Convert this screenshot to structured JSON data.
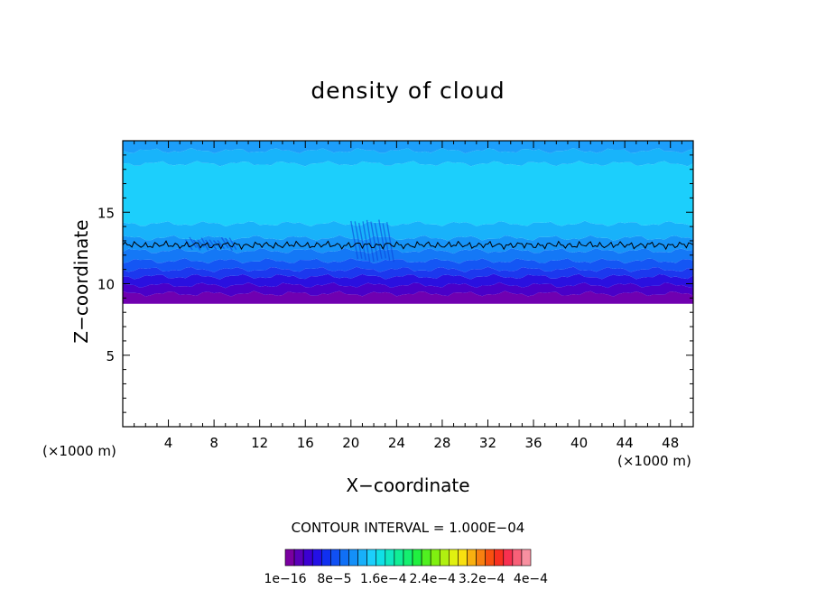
{
  "chart_data": {
    "type": "heatmap",
    "title": "density of cloud",
    "xlabel": "X−coordinate",
    "ylabel": "Z−coordinate",
    "xunit_left": "(×1000 m)",
    "xunit_right": "(×1000 m)",
    "xlim": [
      0,
      50
    ],
    "ylim": [
      0,
      20
    ],
    "xticks": [
      "4",
      "8",
      "12",
      "16",
      "20",
      "24",
      "28",
      "32",
      "36",
      "40",
      "44",
      "48"
    ],
    "xtick_values": [
      4,
      8,
      12,
      16,
      20,
      24,
      28,
      32,
      36,
      40,
      44,
      48
    ],
    "yticks": [
      "5",
      "10",
      "15"
    ],
    "ytick_values": [
      5,
      10,
      15
    ],
    "contour_interval_text": "CONTOUR INTERVAL = 1.000E−04",
    "colorbar": {
      "labels": [
        "1e−16",
        "8e−5",
        "1.6e−4",
        "2.4e−4",
        "3.2e−4",
        "4e−4"
      ],
      "colors": [
        "#7a00a0",
        "#5a00b8",
        "#3c00d2",
        "#2410e6",
        "#1030f0",
        "#1050f4",
        "#1070f6",
        "#1490f8",
        "#18b0fa",
        "#1ccffc",
        "#10e0e6",
        "#10e8c0",
        "#10ee96",
        "#14f070",
        "#20f040",
        "#50f020",
        "#80f010",
        "#b0f010",
        "#e0f010",
        "#f8e010",
        "#f8b010",
        "#f88010",
        "#f85010",
        "#f83020",
        "#f83050",
        "#f86078",
        "#f890a0"
      ],
      "label_positions": [
        0,
        4,
        8,
        12,
        16,
        20
      ]
    },
    "field": {
      "cloud_base_z": 8.6,
      "cloud_top_z": 20,
      "contour_line_z": 12.7,
      "bands": [
        {
          "z0": 8.6,
          "z1": 9.3,
          "color": "#7000b0"
        },
        {
          "z0": 9.3,
          "z1": 9.9,
          "color": "#4a00c8"
        },
        {
          "z0": 9.9,
          "z1": 10.5,
          "color": "#2a10e0"
        },
        {
          "z0": 10.5,
          "z1": 11.0,
          "color": "#1c38ee"
        },
        {
          "z0": 11.0,
          "z1": 11.6,
          "color": "#1456f4"
        },
        {
          "z0": 11.6,
          "z1": 12.3,
          "color": "#1478f6"
        },
        {
          "z0": 12.3,
          "z1": 13.2,
          "color": "#1694f8"
        },
        {
          "z0": 13.2,
          "z1": 14.2,
          "color": "#18b2fa"
        },
        {
          "z0": 14.2,
          "z1": 18.4,
          "color": "#1ccffc"
        },
        {
          "z0": 18.4,
          "z1": 19.3,
          "color": "#18b4fa"
        },
        {
          "z0": 19.3,
          "z1": 20.0,
          "color": "#1c9efa"
        }
      ]
    }
  }
}
